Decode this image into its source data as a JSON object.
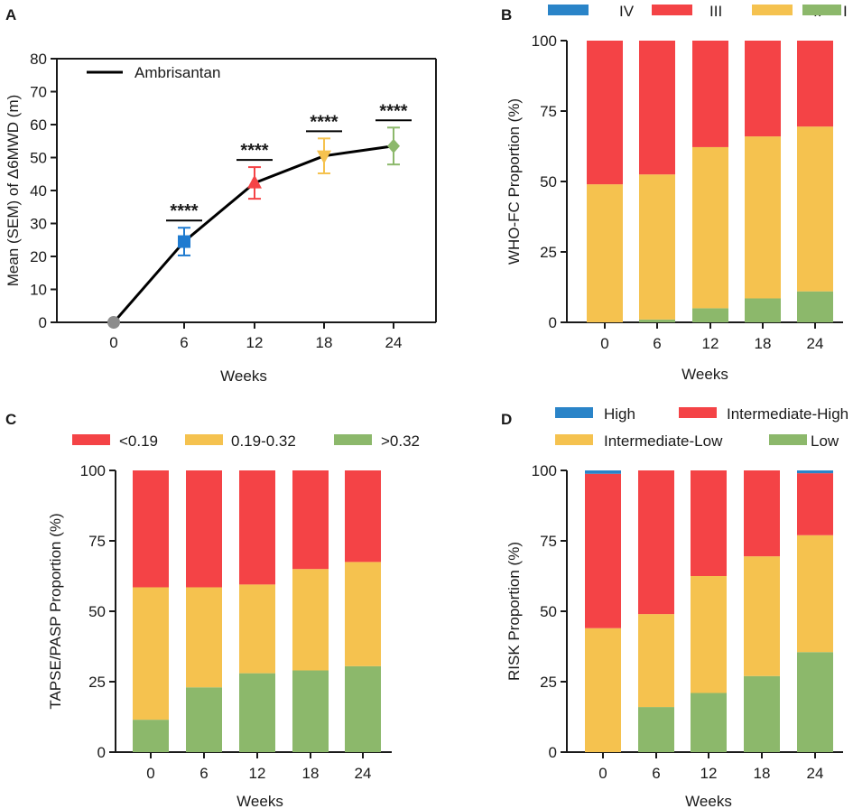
{
  "colors": {
    "IV": "#2a84c8",
    "III": "#f44346",
    "II": "#f5c24f",
    "I": "#8cb86b",
    "week0": "#8c8c8c",
    "week6": "#1f7bd0",
    "week12": "#f44346",
    "week18": "#f5c24f",
    "week24": "#8cb86b",
    "axis": "#1a1a1a"
  },
  "chart_data": [
    {
      "panel": "A",
      "type": "line",
      "legend": [
        "Ambrisantan"
      ],
      "x": [
        0,
        6,
        12,
        18,
        24
      ],
      "x_tick_labels": [
        "0",
        "6",
        "12",
        "18",
        "24"
      ],
      "y": [
        0,
        24.5,
        42.3,
        50.5,
        53.5
      ],
      "sem": [
        0,
        4.2,
        4.8,
        5.3,
        5.6
      ],
      "markers": [
        "circle",
        "square",
        "triangle-up",
        "triangle-down",
        "diamond"
      ],
      "marker_colors": [
        "week0",
        "week6",
        "week12",
        "week18",
        "week24"
      ],
      "significance": [
        "",
        "****",
        "****",
        "****",
        "****"
      ],
      "xlabel": "Weeks",
      "ylabel": "Mean (SEM) of Δ6MWD  (m)",
      "ylim": [
        0,
        80
      ],
      "yticks": [
        0,
        10,
        20,
        30,
        40,
        50,
        60,
        70,
        80
      ]
    },
    {
      "panel": "B",
      "type": "bar",
      "stacked": true,
      "categories": [
        "0",
        "6",
        "12",
        "18",
        "24"
      ],
      "series": [
        {
          "name": "I",
          "color_key": "I",
          "values": [
            0,
            1,
            5,
            8.5,
            11
          ]
        },
        {
          "name": "II",
          "color_key": "II",
          "values": [
            49,
            51.5,
            57.2,
            57.5,
            58.5
          ]
        },
        {
          "name": "III",
          "color_key": "III",
          "values": [
            51,
            47.5,
            37.8,
            34,
            30.5
          ]
        },
        {
          "name": "IV",
          "color_key": "IV",
          "values": [
            0,
            0,
            0,
            0,
            0
          ]
        }
      ],
      "legend": [
        "IV",
        "III",
        "II",
        "I"
      ],
      "xlabel": "Weeks",
      "ylabel": "WHO-FC Proportion  (%)",
      "ylim": [
        0,
        100
      ],
      "yticks": [
        0,
        25,
        50,
        75,
        100
      ]
    },
    {
      "panel": "C",
      "type": "bar",
      "stacked": true,
      "categories": [
        "0",
        "6",
        "12",
        "18",
        "24"
      ],
      "series": [
        {
          "name": ">0.32",
          "color_key": "I",
          "values": [
            11.5,
            23,
            28,
            29,
            30.5
          ]
        },
        {
          "name": "0.19-0.32",
          "color_key": "II",
          "values": [
            47,
            35.5,
            31.5,
            36,
            37
          ]
        },
        {
          "name": "<0.19",
          "color_key": "III",
          "values": [
            41.5,
            41.5,
            40.5,
            35,
            32.5
          ]
        }
      ],
      "legend": [
        "<0.19",
        "0.19-0.32",
        ">0.32"
      ],
      "xlabel": "Weeks",
      "ylabel": "TAPSE/PASP Proportion (%)",
      "ylim": [
        0,
        100
      ],
      "yticks": [
        0,
        25,
        50,
        75,
        100
      ]
    },
    {
      "panel": "D",
      "type": "bar",
      "stacked": true,
      "categories": [
        "0",
        "6",
        "12",
        "18",
        "24"
      ],
      "series": [
        {
          "name": "Low",
          "color_key": "I",
          "values": [
            0,
            16,
            21,
            27,
            35.5
          ]
        },
        {
          "name": "Intermediate-Low",
          "color_key": "II",
          "values": [
            44,
            33,
            41.5,
            42.5,
            41.5
          ]
        },
        {
          "name": "Intermediate-High",
          "color_key": "III",
          "values": [
            54.8,
            51,
            37.5,
            30.5,
            22
          ]
        },
        {
          "name": "High",
          "color_key": "IV",
          "values": [
            1.2,
            0,
            0,
            0,
            1
          ]
        }
      ],
      "legend": [
        "High",
        "Intermediate-High",
        "Intermediate-Low",
        "Low"
      ],
      "xlabel": "Weeks",
      "ylabel": "RISK Proportion (%)",
      "ylim": [
        0,
        100
      ],
      "yticks": [
        0,
        25,
        50,
        75,
        100
      ]
    }
  ]
}
